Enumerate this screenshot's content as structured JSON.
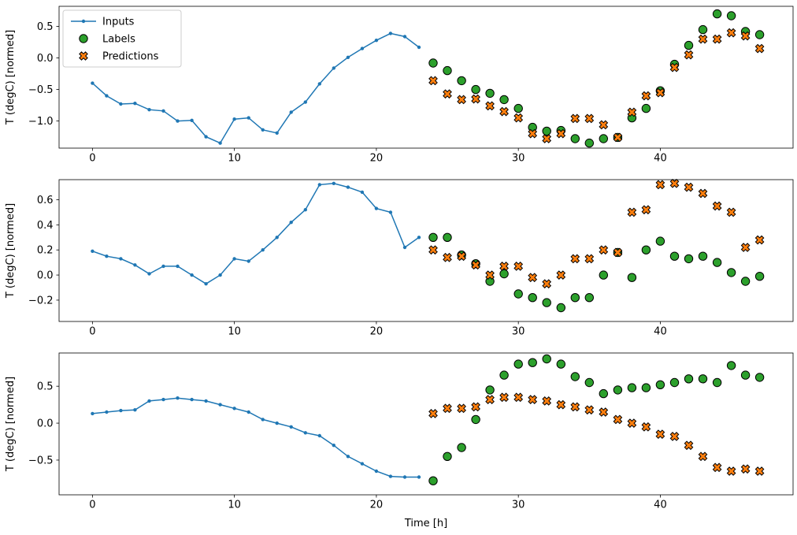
{
  "figure": {
    "background": "#ffffff",
    "ylabel": "T (degC) [normed]",
    "xlabel": "Time [h]",
    "legend": [
      {
        "label": "Inputs",
        "type": "line",
        "color": "#1f77b4"
      },
      {
        "label": "Labels",
        "type": "circle",
        "color": "#2ca02c"
      },
      {
        "label": "Predictions",
        "type": "x",
        "color": "#ff7f0e"
      }
    ]
  },
  "chart_data": [
    {
      "type": "line",
      "title": "",
      "xlabel": "",
      "ylabel": "T (degC) [normed]",
      "xlim": [
        -2.35,
        49.35
      ],
      "ylim": [
        -1.43,
        0.82
      ],
      "xticks": [
        0,
        10,
        20,
        30,
        40
      ],
      "yticks": [
        0.5,
        0.0,
        -0.5,
        -1.0
      ],
      "grid": false,
      "legend_position": "upper left",
      "series": [
        {
          "name": "Inputs",
          "marker": "dot",
          "color": "#1f77b4",
          "x": [
            0,
            1,
            2,
            3,
            4,
            5,
            6,
            7,
            8,
            9,
            10,
            11,
            12,
            13,
            14,
            15,
            16,
            17,
            18,
            19,
            20,
            21,
            22,
            23
          ],
          "y": [
            -0.4,
            -0.6,
            -0.73,
            -0.72,
            -0.82,
            -0.84,
            -1.0,
            -0.99,
            -1.25,
            -1.35,
            -0.97,
            -0.95,
            -1.14,
            -1.19,
            -0.86,
            -0.7,
            -0.41,
            -0.16,
            0.01,
            0.15,
            0.28,
            0.39,
            0.34,
            0.17
          ]
        },
        {
          "name": "Labels",
          "marker": "circle",
          "color": "#2ca02c",
          "edge": "#000000",
          "x": [
            24,
            25,
            26,
            27,
            28,
            29,
            30,
            31,
            32,
            33,
            34,
            35,
            36,
            37,
            38,
            39,
            40,
            41,
            42,
            43,
            44,
            45,
            46,
            47
          ],
          "y": [
            -0.08,
            -0.2,
            -0.36,
            -0.5,
            -0.56,
            -0.66,
            -0.8,
            -1.1,
            -1.16,
            -1.15,
            -1.28,
            -1.35,
            -1.28,
            -1.26,
            -0.95,
            -0.8,
            -0.52,
            -0.1,
            0.2,
            0.45,
            0.7,
            0.67,
            0.42,
            0.37
          ]
        },
        {
          "name": "Predictions",
          "marker": "x",
          "color": "#ff7f0e",
          "edge": "#000000",
          "x": [
            24,
            25,
            26,
            27,
            28,
            29,
            30,
            31,
            32,
            33,
            34,
            35,
            36,
            37,
            38,
            39,
            40,
            41,
            42,
            43,
            44,
            45,
            46,
            47
          ],
          "y": [
            -0.36,
            -0.57,
            -0.66,
            -0.65,
            -0.76,
            -0.85,
            -0.95,
            -1.2,
            -1.28,
            -1.2,
            -0.96,
            -0.96,
            -1.06,
            -1.26,
            -0.86,
            -0.6,
            -0.55,
            -0.15,
            0.05,
            0.3,
            0.3,
            0.4,
            0.35,
            0.15
          ]
        }
      ]
    },
    {
      "type": "line",
      "title": "",
      "xlabel": "",
      "ylabel": "T (degC) [normed]",
      "xlim": [
        -2.35,
        49.35
      ],
      "ylim": [
        -0.37,
        0.76
      ],
      "xticks": [
        0,
        10,
        20,
        30,
        40
      ],
      "yticks": [
        0.6,
        0.4,
        0.2,
        0.0,
        -0.2
      ],
      "grid": false,
      "legend_position": "none",
      "series": [
        {
          "name": "Inputs",
          "marker": "dot",
          "color": "#1f77b4",
          "x": [
            0,
            1,
            2,
            3,
            4,
            5,
            6,
            7,
            8,
            9,
            10,
            11,
            12,
            13,
            14,
            15,
            16,
            17,
            18,
            19,
            20,
            21,
            22,
            23
          ],
          "y": [
            0.19,
            0.15,
            0.13,
            0.08,
            0.01,
            0.07,
            0.07,
            0.0,
            -0.07,
            0.0,
            0.13,
            0.11,
            0.2,
            0.3,
            0.42,
            0.52,
            0.72,
            0.73,
            0.7,
            0.66,
            0.53,
            0.5,
            0.22,
            0.3
          ]
        },
        {
          "name": "Labels",
          "marker": "circle",
          "color": "#2ca02c",
          "edge": "#000000",
          "x": [
            24,
            25,
            26,
            27,
            28,
            29,
            30,
            31,
            32,
            33,
            34,
            35,
            36,
            37,
            38,
            39,
            40,
            41,
            42,
            43,
            44,
            45,
            46,
            47
          ],
          "y": [
            0.3,
            0.3,
            0.16,
            0.09,
            -0.05,
            0.01,
            -0.15,
            -0.18,
            -0.22,
            -0.26,
            -0.18,
            -0.18,
            0.0,
            0.18,
            -0.02,
            0.2,
            0.27,
            0.15,
            0.13,
            0.15,
            0.1,
            0.02,
            -0.05,
            -0.01
          ]
        },
        {
          "name": "Predictions",
          "marker": "x",
          "color": "#ff7f0e",
          "edge": "#000000",
          "x": [
            24,
            25,
            26,
            27,
            28,
            29,
            30,
            31,
            32,
            33,
            34,
            35,
            36,
            37,
            38,
            39,
            40,
            41,
            42,
            43,
            44,
            45,
            46,
            47
          ],
          "y": [
            0.2,
            0.14,
            0.15,
            0.08,
            0.0,
            0.07,
            0.07,
            -0.02,
            -0.07,
            0.0,
            0.13,
            0.13,
            0.2,
            0.18,
            0.5,
            0.52,
            0.72,
            0.73,
            0.7,
            0.65,
            0.55,
            0.5,
            0.22,
            0.28
          ]
        }
      ]
    },
    {
      "type": "line",
      "title": "",
      "xlabel": "Time [h]",
      "ylabel": "T (degC) [normed]",
      "xlim": [
        -2.35,
        49.35
      ],
      "ylim": [
        -0.97,
        0.95
      ],
      "xticks": [
        0,
        10,
        20,
        30,
        40
      ],
      "yticks": [
        0.5,
        0.0,
        -0.5
      ],
      "grid": false,
      "legend_position": "none",
      "series": [
        {
          "name": "Inputs",
          "marker": "dot",
          "color": "#1f77b4",
          "x": [
            0,
            1,
            2,
            3,
            4,
            5,
            6,
            7,
            8,
            9,
            10,
            11,
            12,
            13,
            14,
            15,
            16,
            17,
            18,
            19,
            20,
            21,
            22,
            23
          ],
          "y": [
            0.13,
            0.15,
            0.17,
            0.18,
            0.3,
            0.32,
            0.34,
            0.32,
            0.3,
            0.25,
            0.2,
            0.15,
            0.05,
            0.0,
            -0.05,
            -0.13,
            -0.17,
            -0.3,
            -0.45,
            -0.55,
            -0.65,
            -0.72,
            -0.73,
            -0.73
          ]
        },
        {
          "name": "Labels",
          "marker": "circle",
          "color": "#2ca02c",
          "edge": "#000000",
          "x": [
            24,
            25,
            26,
            27,
            28,
            29,
            30,
            31,
            32,
            33,
            34,
            35,
            36,
            37,
            38,
            39,
            40,
            41,
            42,
            43,
            44,
            45,
            46,
            47
          ],
          "y": [
            -0.78,
            -0.45,
            -0.33,
            0.05,
            0.45,
            0.65,
            0.8,
            0.82,
            0.87,
            0.8,
            0.63,
            0.55,
            0.4,
            0.45,
            0.48,
            0.48,
            0.52,
            0.55,
            0.6,
            0.6,
            0.55,
            0.78,
            0.65,
            0.62
          ]
        },
        {
          "name": "Predictions",
          "marker": "x",
          "color": "#ff7f0e",
          "edge": "#000000",
          "x": [
            24,
            25,
            26,
            27,
            28,
            29,
            30,
            31,
            32,
            33,
            34,
            35,
            36,
            37,
            38,
            39,
            40,
            41,
            42,
            43,
            44,
            45,
            46,
            47
          ],
          "y": [
            0.13,
            0.2,
            0.2,
            0.22,
            0.32,
            0.35,
            0.35,
            0.32,
            0.3,
            0.25,
            0.22,
            0.18,
            0.15,
            0.05,
            0.0,
            -0.05,
            -0.15,
            -0.18,
            -0.3,
            -0.45,
            -0.6,
            -0.65,
            -0.62,
            -0.65
          ]
        }
      ]
    }
  ]
}
